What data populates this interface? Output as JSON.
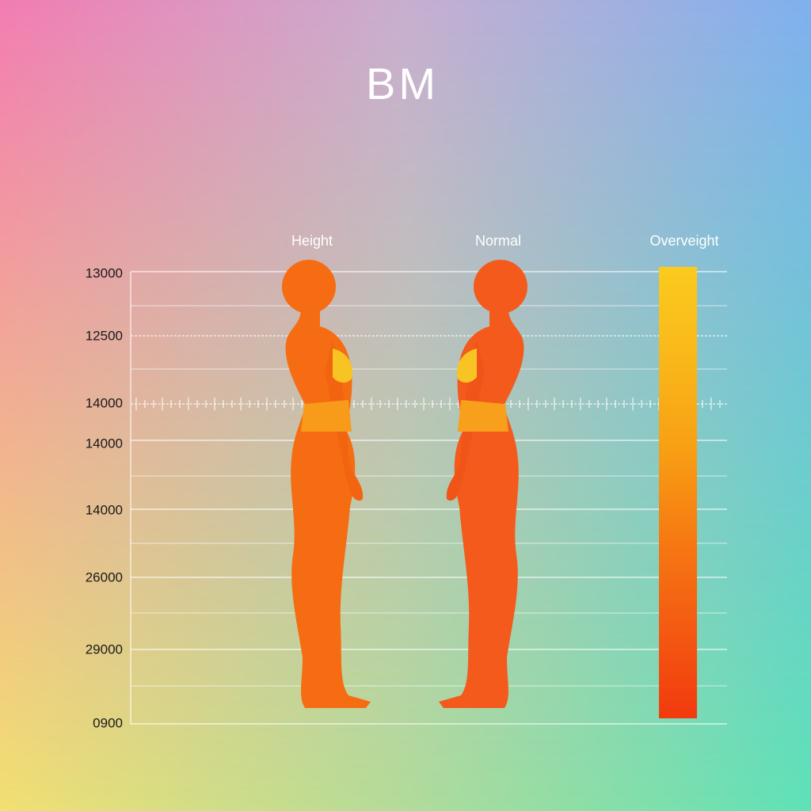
{
  "title": "BM",
  "columns": [
    "Height",
    "Normal",
    "Overveight"
  ],
  "axis_labels": [
    "13000",
    "12500",
    "14000",
    "14000",
    "14000",
    "26000",
    "29000",
    "0900"
  ]
}
